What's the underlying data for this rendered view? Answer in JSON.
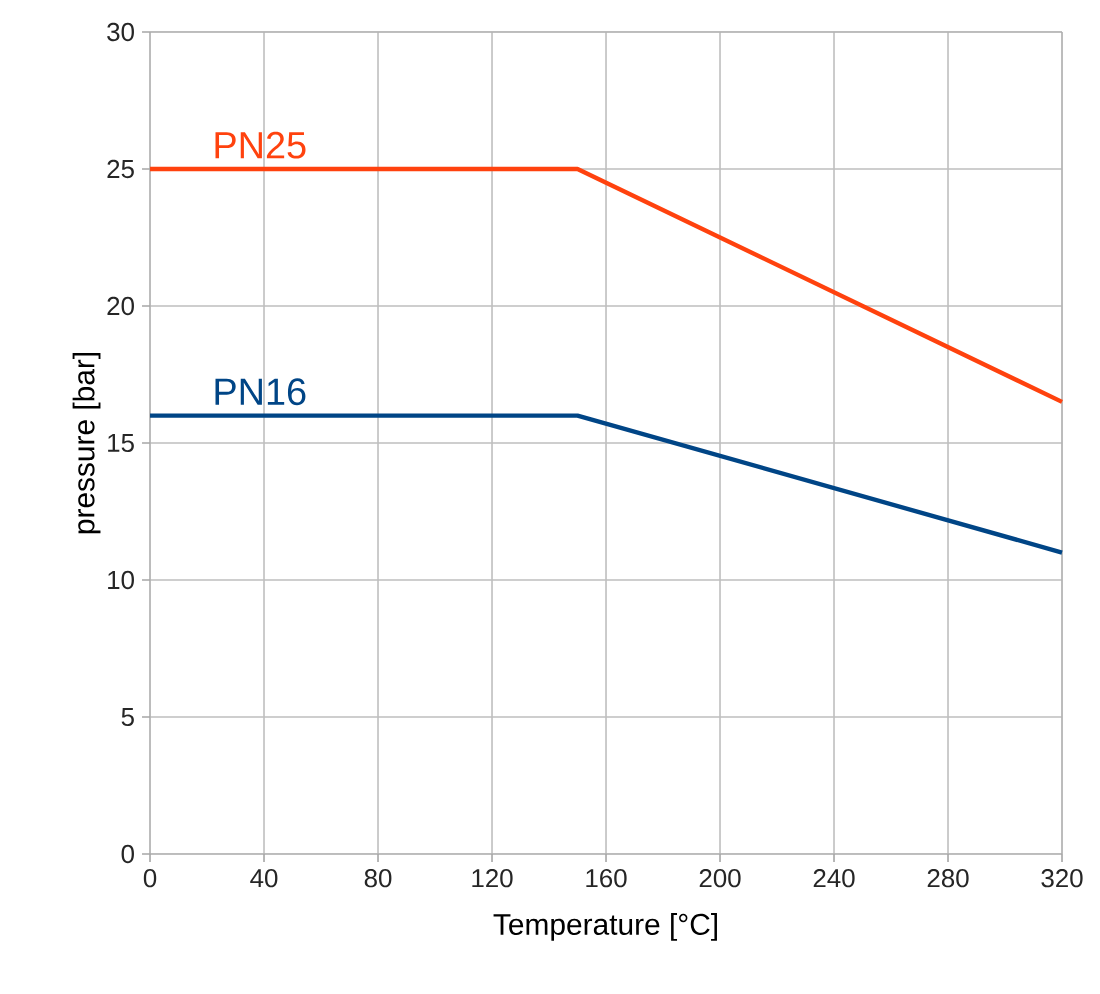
{
  "chart_data": {
    "type": "line",
    "xlabel": "Temperature [°C]",
    "ylabel": "pressure [bar]",
    "x": [
      0,
      150,
      320
    ],
    "series": [
      {
        "name": "PN25",
        "color": "#ff420e",
        "values": [
          25,
          25,
          16.5
        ]
      },
      {
        "name": "PN16",
        "color": "#004586",
        "values": [
          16,
          16,
          11
        ]
      }
    ],
    "xlim": [
      0,
      320
    ],
    "xticks": [
      0,
      40,
      80,
      120,
      160,
      200,
      240,
      280,
      320
    ],
    "ylim": [
      0,
      30
    ],
    "yticks": [
      0,
      5,
      10,
      15,
      20,
      25,
      30
    ],
    "grid": true,
    "legend": false,
    "marker": "none",
    "line_style": "solid"
  }
}
